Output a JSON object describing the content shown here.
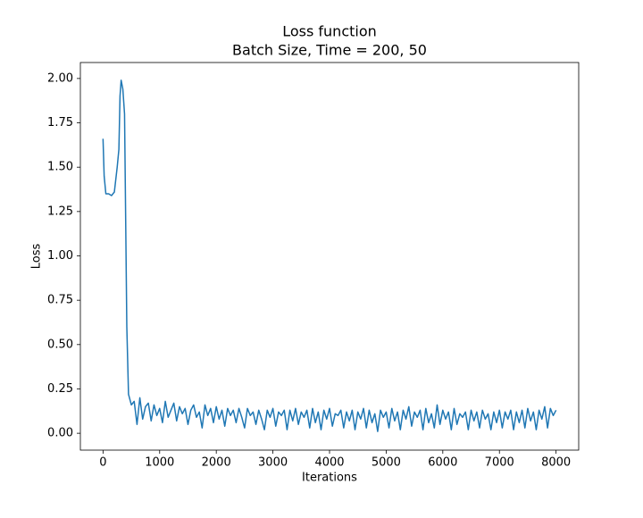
{
  "chart_data": {
    "type": "line",
    "title": "Loss function",
    "subtitle": "Batch Size, Time = 200, 50",
    "x_label": "Iterations",
    "y_label": "Loss",
    "xlim": [
      -400,
      8400
    ],
    "ylim": [
      -0.095,
      2.09
    ],
    "xticks": [
      0,
      1000,
      2000,
      3000,
      4000,
      5000,
      6000,
      7000,
      8000
    ],
    "yticks": [
      {
        "value": 0,
        "label": "0.00"
      },
      {
        "value": 0.25,
        "label": "0.25"
      },
      {
        "value": 0.5,
        "label": "0.50"
      },
      {
        "value": 0.75,
        "label": "0.75"
      },
      {
        "value": 1,
        "label": "1.00"
      },
      {
        "value": 1.25,
        "label": "1.25"
      },
      {
        "value": 1.5,
        "label": "1.50"
      },
      {
        "value": 1.75,
        "label": "1.75"
      },
      {
        "value": 2,
        "label": "2.00"
      }
    ],
    "x": [
      0,
      20,
      50,
      100,
      150,
      200,
      250,
      280,
      300,
      320,
      350,
      380,
      400,
      420,
      450,
      500,
      550,
      600,
      650,
      700,
      750,
      800,
      850,
      900,
      950,
      1000,
      1050,
      1100,
      1150,
      1200,
      1250,
      1300,
      1350,
      1400,
      1450,
      1500,
      1550,
      1600,
      1650,
      1700,
      1750,
      1800,
      1850,
      1900,
      1950,
      2000,
      2050,
      2100,
      2150,
      2200,
      2250,
      2300,
      2350,
      2400,
      2450,
      2500,
      2550,
      2600,
      2650,
      2700,
      2750,
      2800,
      2850,
      2900,
      2950,
      3000,
      3050,
      3100,
      3150,
      3200,
      3250,
      3300,
      3350,
      3400,
      3450,
      3500,
      3550,
      3600,
      3650,
      3700,
      3750,
      3800,
      3850,
      3900,
      3950,
      4000,
      4050,
      4100,
      4150,
      4200,
      4250,
      4300,
      4350,
      4400,
      4450,
      4500,
      4550,
      4600,
      4650,
      4700,
      4750,
      4800,
      4850,
      4900,
      4950,
      5000,
      5050,
      5100,
      5150,
      5200,
      5250,
      5300,
      5350,
      5400,
      5450,
      5500,
      5550,
      5600,
      5650,
      5700,
      5750,
      5800,
      5850,
      5900,
      5950,
      6000,
      6050,
      6100,
      6150,
      6200,
      6250,
      6300,
      6350,
      6400,
      6450,
      6500,
      6550,
      6600,
      6650,
      6700,
      6750,
      6800,
      6850,
      6900,
      6950,
      7000,
      7050,
      7100,
      7150,
      7200,
      7250,
      7300,
      7350,
      7400,
      7450,
      7500,
      7550,
      7600,
      7650,
      7700,
      7750,
      7800,
      7850,
      7900,
      7950,
      8000
    ],
    "series": [
      {
        "name": "loss",
        "color": "#1f77b4",
        "values": [
          1.66,
          1.45,
          1.35,
          1.35,
          1.34,
          1.36,
          1.5,
          1.6,
          1.9,
          1.99,
          1.94,
          1.8,
          1.2,
          0.6,
          0.22,
          0.16,
          0.18,
          0.05,
          0.2,
          0.08,
          0.15,
          0.17,
          0.07,
          0.16,
          0.1,
          0.14,
          0.06,
          0.18,
          0.09,
          0.13,
          0.17,
          0.07,
          0.15,
          0.11,
          0.14,
          0.05,
          0.13,
          0.16,
          0.09,
          0.12,
          0.03,
          0.16,
          0.1,
          0.14,
          0.06,
          0.15,
          0.08,
          0.13,
          0.04,
          0.14,
          0.1,
          0.13,
          0.06,
          0.14,
          0.09,
          0.03,
          0.14,
          0.1,
          0.12,
          0.05,
          0.13,
          0.08,
          0.02,
          0.13,
          0.09,
          0.14,
          0.04,
          0.12,
          0.1,
          0.13,
          0.02,
          0.13,
          0.07,
          0.14,
          0.05,
          0.12,
          0.09,
          0.13,
          0.03,
          0.14,
          0.06,
          0.12,
          0.02,
          0.13,
          0.08,
          0.14,
          0.04,
          0.11,
          0.1,
          0.13,
          0.03,
          0.12,
          0.07,
          0.13,
          0.02,
          0.12,
          0.08,
          0.14,
          0.03,
          0.13,
          0.06,
          0.11,
          0.01,
          0.13,
          0.09,
          0.12,
          0.03,
          0.14,
          0.07,
          0.12,
          0.02,
          0.13,
          0.08,
          0.15,
          0.04,
          0.12,
          0.09,
          0.13,
          0.02,
          0.14,
          0.06,
          0.11,
          0.03,
          0.16,
          0.05,
          0.13,
          0.08,
          0.12,
          0.02,
          0.14,
          0.05,
          0.11,
          0.09,
          0.12,
          0.02,
          0.13,
          0.07,
          0.12,
          0.03,
          0.13,
          0.08,
          0.11,
          0.02,
          0.12,
          0.06,
          0.13,
          0.03,
          0.12,
          0.08,
          0.13,
          0.02,
          0.12,
          0.06,
          0.13,
          0.03,
          0.14,
          0.07,
          0.12,
          0.02,
          0.13,
          0.08,
          0.15,
          0.03,
          0.14,
          0.1,
          0.13
        ]
      }
    ]
  }
}
